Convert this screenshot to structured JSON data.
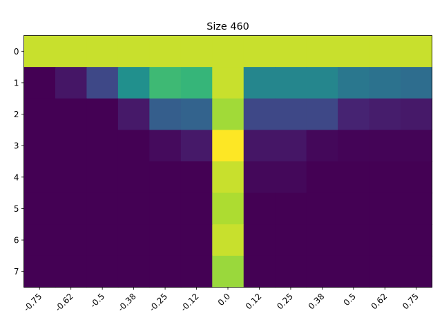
{
  "chart_data": {
    "type": "heatmap",
    "title": "Size 460",
    "xlabel": "",
    "ylabel": "",
    "x_ticks": [
      "-0.75",
      "-0.62",
      "-0.5",
      "-0.38",
      "-0.25",
      "-0.12",
      "0.0",
      "0.12",
      "0.25",
      "0.38",
      "0.5",
      "0.62",
      "0.75"
    ],
    "y_ticks": [
      "0",
      "1",
      "2",
      "3",
      "4",
      "5",
      "6",
      "7"
    ],
    "colormap": "viridis",
    "color_range": [
      0,
      1
    ],
    "grid": false,
    "values": [
      [
        0.92,
        0.92,
        0.92,
        0.92,
        0.92,
        0.92,
        0.92,
        0.92,
        0.92,
        0.92,
        0.92,
        0.92,
        0.92
      ],
      [
        0.0,
        0.06,
        0.22,
        0.5,
        0.68,
        0.66,
        0.92,
        0.46,
        0.46,
        0.46,
        0.4,
        0.38,
        0.36
      ],
      [
        0.0,
        0.0,
        0.0,
        0.07,
        0.3,
        0.32,
        0.86,
        0.22,
        0.22,
        0.22,
        0.1,
        0.08,
        0.07
      ],
      [
        0.0,
        0.0,
        0.0,
        0.0,
        0.03,
        0.07,
        1.0,
        0.06,
        0.06,
        0.02,
        0.01,
        0.01,
        0.01
      ],
      [
        0.0,
        0.0,
        0.0,
        0.0,
        0.0,
        0.0,
        0.92,
        0.02,
        0.02,
        0.0,
        0.0,
        0.0,
        0.0
      ],
      [
        0.0,
        0.0,
        0.0,
        0.0,
        0.0,
        0.0,
        0.88,
        0.0,
        0.0,
        0.0,
        0.0,
        0.0,
        0.0
      ],
      [
        0.0,
        0.0,
        0.0,
        0.0,
        0.0,
        0.0,
        0.92,
        0.0,
        0.0,
        0.0,
        0.0,
        0.0,
        0.0
      ],
      [
        0.0,
        0.0,
        0.0,
        0.0,
        0.0,
        0.0,
        0.85,
        0.0,
        0.0,
        0.0,
        0.0,
        0.0,
        0.0
      ]
    ]
  }
}
